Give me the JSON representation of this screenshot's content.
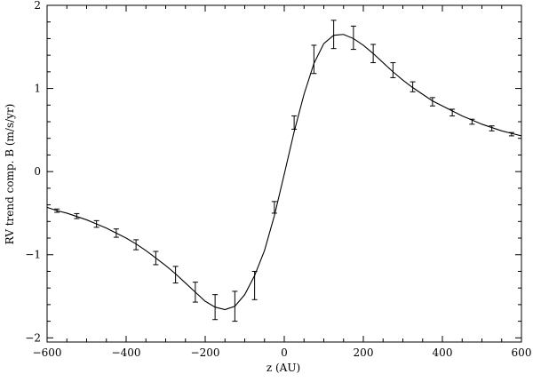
{
  "chart_data": {
    "type": "scatter",
    "title": "",
    "xlabel": "z (AU)",
    "ylabel": "RV trend comp. B (m/s/yr)",
    "xlim": [
      -600,
      600
    ],
    "ylim": [
      -2.05,
      2.0
    ],
    "x_ticks": [
      -600,
      -400,
      -200,
      0,
      200,
      400,
      600
    ],
    "x_tick_labels": [
      "−600",
      "−400",
      "−200",
      "0",
      "200",
      "400",
      "600"
    ],
    "y_ticks": [
      -2,
      -1,
      0,
      1,
      2
    ],
    "y_tick_labels": [
      "−2",
      "−1",
      "0",
      "1",
      "2"
    ],
    "grid": false,
    "series": [
      {
        "kind": "errorbar",
        "x": [
          -575,
          -525,
          -475,
          -425,
          -375,
          -325,
          -275,
          -225,
          -175,
          -125,
          -75,
          -25,
          25,
          75,
          125,
          175,
          225,
          275,
          325,
          375,
          425,
          475,
          525,
          575
        ],
        "y": [
          -0.47,
          -0.535,
          -0.63,
          -0.74,
          -0.88,
          -1.04,
          -1.24,
          -1.45,
          -1.63,
          -1.62,
          -1.37,
          -0.43,
          0.59,
          1.35,
          1.65,
          1.61,
          1.42,
          1.22,
          1.02,
          0.84,
          0.71,
          0.6,
          0.52,
          0.45
        ],
        "err": [
          0.02,
          0.03,
          0.04,
          0.05,
          0.06,
          0.08,
          0.1,
          0.12,
          0.15,
          0.18,
          0.17,
          0.07,
          0.08,
          0.17,
          0.17,
          0.14,
          0.11,
          0.09,
          0.06,
          0.05,
          0.04,
          0.03,
          0.03,
          0.02
        ]
      },
      {
        "kind": "line",
        "x": [
          -600,
          -575,
          -550,
          -525,
          -500,
          -475,
          -450,
          -425,
          -400,
          -375,
          -350,
          -325,
          -300,
          -275,
          -250,
          -225,
          -200,
          -175,
          -150,
          -125,
          -100,
          -75,
          -50,
          -25,
          0,
          25,
          50,
          75,
          100,
          125,
          150,
          175,
          200,
          225,
          250,
          275,
          300,
          325,
          350,
          375,
          400,
          425,
          450,
          475,
          500,
          525,
          550,
          575,
          600
        ],
        "y": [
          -0.43,
          -0.47,
          -0.5,
          -0.54,
          -0.58,
          -0.63,
          -0.68,
          -0.74,
          -0.8,
          -0.87,
          -0.95,
          -1.04,
          -1.13,
          -1.23,
          -1.34,
          -1.45,
          -1.56,
          -1.63,
          -1.66,
          -1.62,
          -1.48,
          -1.25,
          -0.95,
          -0.53,
          -0.03,
          0.48,
          0.93,
          1.3,
          1.54,
          1.64,
          1.65,
          1.6,
          1.52,
          1.42,
          1.31,
          1.2,
          1.1,
          1.01,
          0.93,
          0.85,
          0.79,
          0.73,
          0.67,
          0.62,
          0.57,
          0.53,
          0.49,
          0.46,
          0.43
        ]
      }
    ]
  }
}
